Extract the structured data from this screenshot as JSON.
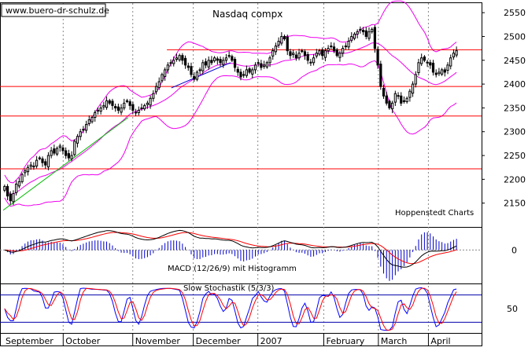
{
  "watermark": "www.buero-dr-schulz.de",
  "source_note": "Hoppenstedt Charts",
  "chart_data": [
    {
      "type": "candlestick",
      "title": "Nasdaq compx",
      "ylim": [
        2100,
        2570
      ],
      "y_ticks": [
        2150,
        2200,
        2250,
        2300,
        2350,
        2400,
        2450,
        2500,
        2550
      ],
      "x_months": [
        "September",
        "October",
        "November",
        "December",
        "2007",
        "February",
        "March",
        "April"
      ],
      "horizontal_lines": [
        {
          "value": 2472,
          "color": "#ff0000"
        },
        {
          "value": 2395,
          "color": "#ff0000"
        },
        {
          "value": 2333,
          "color": "#ff0000"
        },
        {
          "value": 2222,
          "color": "#ff0000"
        }
      ],
      "trendlines": [
        {
          "color": "#00bb00",
          "from": {
            "t": 0.0,
            "v": 2135
          },
          "to": {
            "t": 0.275,
            "v": 2330
          }
        },
        {
          "color": "#0000cc",
          "from": {
            "t": 0.37,
            "v": 2392
          },
          "to": {
            "t": 0.5,
            "v": 2445
          }
        }
      ],
      "closes": [
        2185,
        2165,
        2155,
        2170,
        2190,
        2195,
        2210,
        2218,
        2225,
        2230,
        2228,
        2240,
        2245,
        2235,
        2230,
        2250,
        2260,
        2255,
        2265,
        2270,
        2260,
        2250,
        2245,
        2250,
        2280,
        2290,
        2300,
        2305,
        2315,
        2325,
        2330,
        2340,
        2345,
        2350,
        2355,
        2365,
        2360,
        2355,
        2350,
        2345,
        2350,
        2360,
        2365,
        2355,
        2345,
        2340,
        2345,
        2350,
        2355,
        2360,
        2370,
        2380,
        2395,
        2405,
        2420,
        2430,
        2440,
        2445,
        2450,
        2455,
        2460,
        2450,
        2440,
        2435,
        2420,
        2410,
        2425,
        2430,
        2445,
        2440,
        2450,
        2445,
        2455,
        2450,
        2445,
        2450,
        2455,
        2460,
        2450,
        2435,
        2425,
        2415,
        2420,
        2430,
        2425,
        2430,
        2440,
        2445,
        2435,
        2440,
        2445,
        2455,
        2470,
        2480,
        2490,
        2500,
        2495,
        2470,
        2460,
        2465,
        2455,
        2465,
        2470,
        2460,
        2450,
        2445,
        2455,
        2465,
        2470,
        2460,
        2470,
        2475,
        2480,
        2470,
        2460,
        2465,
        2475,
        2480,
        2490,
        2500,
        2505,
        2510,
        2515,
        2510,
        2500,
        2510,
        2515,
        2475,
        2440,
        2395,
        2375,
        2360,
        2350,
        2360,
        2380,
        2375,
        2360,
        2365,
        2370,
        2385,
        2400,
        2420,
        2445,
        2455,
        2450,
        2445,
        2440,
        2425,
        2420,
        2425,
        2430,
        2425,
        2440,
        2455,
        2465,
        2470
      ]
    },
    {
      "type": "line",
      "title": "MACD (12/26/9) mit Histogramm",
      "y_ticks": [
        0
      ],
      "ylim": [
        -60,
        40
      ],
      "series": [
        {
          "name": "MACD",
          "color": "#000000"
        },
        {
          "name": "Signal",
          "color": "#ff0000"
        }
      ],
      "histogram_color": "#0000cc"
    },
    {
      "type": "line",
      "title": "Slow Stochastik (5/3/3)",
      "y_ticks": [
        50
      ],
      "ylim": [
        0,
        100
      ],
      "levels": [
        20,
        80
      ],
      "series": [
        {
          "name": "%K",
          "color": "#0000ff"
        },
        {
          "name": "%D",
          "color": "#ff0000"
        }
      ]
    }
  ]
}
